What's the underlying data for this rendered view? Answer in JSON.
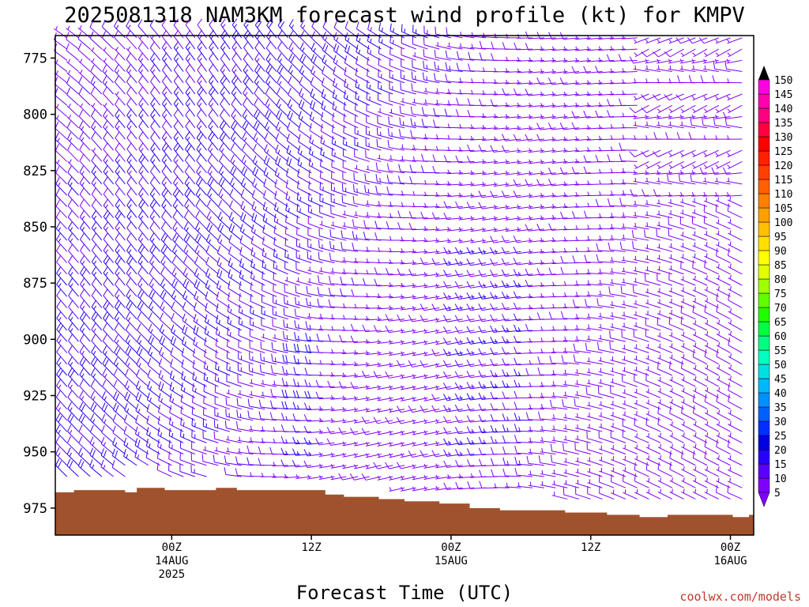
{
  "chart_data": {
    "type": "wind-barb-profile",
    "title": "2025081318 NAM3KM forecast wind profile (kt) for KMPV",
    "xlabel": "Forecast Time (UTC)",
    "ylabel": "",
    "credit": "coolwx.com/models",
    "y_axis": {
      "range": [
        987,
        765
      ],
      "ticks": [
        775,
        800,
        825,
        850,
        875,
        900,
        925,
        950,
        975
      ]
    },
    "x_axis": {
      "range_hours": [
        -5,
        25
      ],
      "ticks": [
        {
          "hour": 0,
          "line1": "00Z",
          "line2": "14AUG",
          "line3": "2025"
        },
        {
          "hour": 6,
          "line1": "12Z",
          "line2": "",
          "line3": ""
        },
        {
          "hour": 12,
          "line1": "00Z",
          "line2": "15AUG",
          "line3": ""
        },
        {
          "hour": 18,
          "line1": "12Z",
          "line2": "",
          "line3": ""
        },
        {
          "hour": 24,
          "line1": "00Z",
          "line2": "16AUG",
          "line3": ""
        }
      ]
    },
    "colorbar": {
      "levels": [
        5,
        10,
        15,
        20,
        25,
        30,
        35,
        40,
        45,
        50,
        55,
        60,
        65,
        70,
        75,
        80,
        85,
        90,
        95,
        100,
        105,
        110,
        115,
        120,
        125,
        130,
        135,
        140,
        145,
        150
      ],
      "colors": [
        "#8000ff",
        "#5a00ff",
        "#2800ff",
        "#0000e0",
        "#0030ff",
        "#0060ff",
        "#0090ff",
        "#00b8ff",
        "#00e0e0",
        "#00ffc0",
        "#00ff80",
        "#00ff40",
        "#20ff00",
        "#60ff00",
        "#a0ff00",
        "#e0ff00",
        "#ffff00",
        "#ffe000",
        "#ffc000",
        "#ffa000",
        "#ff8000",
        "#ff6000",
        "#ff4000",
        "#ff2000",
        "#ff0000",
        "#ff0040",
        "#ff0080",
        "#ff00b0",
        "#ff00e0",
        "#ff00ff"
      ]
    },
    "surface_pressure": [
      {
        "hour": -4.7,
        "p": 968
      },
      {
        "hour": -4.2,
        "p": 967
      },
      {
        "hour": -2.0,
        "p": 968
      },
      {
        "hour": -1.5,
        "p": 966
      },
      {
        "hour": -0.3,
        "p": 967
      },
      {
        "hour": 1.9,
        "p": 966
      },
      {
        "hour": 2.8,
        "p": 967
      },
      {
        "hour": 5.1,
        "p": 967
      },
      {
        "hour": 6.6,
        "p": 969
      },
      {
        "hour": 7.4,
        "p": 970
      },
      {
        "hour": 8.9,
        "p": 971
      },
      {
        "hour": 10.0,
        "p": 972
      },
      {
        "hour": 11.5,
        "p": 973
      },
      {
        "hour": 12.8,
        "p": 975
      },
      {
        "hour": 14.1,
        "p": 976
      },
      {
        "hour": 16.9,
        "p": 977
      },
      {
        "hour": 18.7,
        "p": 978
      },
      {
        "hour": 20.1,
        "p": 979
      },
      {
        "hour": 21.3,
        "p": 978
      },
      {
        "hour": 24.1,
        "p": 979
      },
      {
        "hour": 24.8,
        "p": 978
      }
    ],
    "barb_grid": {
      "hour_start": -4.5,
      "hour_end": 24.5,
      "hour_step": 0.5,
      "pressure_top": 766,
      "pressure_step": 5,
      "dominant_direction": "westerly to northwesterly",
      "speed_range_kt": [
        5,
        25
      ]
    }
  }
}
